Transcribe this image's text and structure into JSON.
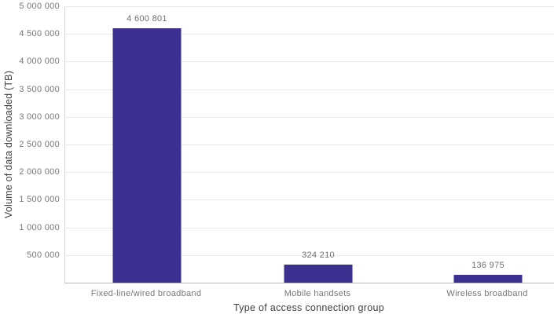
{
  "chart_data": {
    "type": "bar",
    "categories": [
      "Fixed-line/wired broadband",
      "Mobile handsets",
      "Wireless broadband"
    ],
    "values": [
      4600801,
      324210,
      136975
    ],
    "value_labels": [
      "4 600 801",
      "324 210",
      "136 975"
    ],
    "xlabel": "Type of access connection group",
    "ylabel": "Volume of data downloaded (TB)",
    "ylim": [
      0,
      5000000
    ],
    "ytick_interval": 500000,
    "ytick_labels": [
      "5 000 000",
      "4 500 000",
      "4 000 000",
      "3 500 000",
      "3 000 000",
      "2 500 000",
      "2 000 000",
      "1 500 000",
      "1 000 000",
      "500 000"
    ],
    "bar_color": "#3c3191",
    "grid": true,
    "legend": false,
    "title": ""
  }
}
